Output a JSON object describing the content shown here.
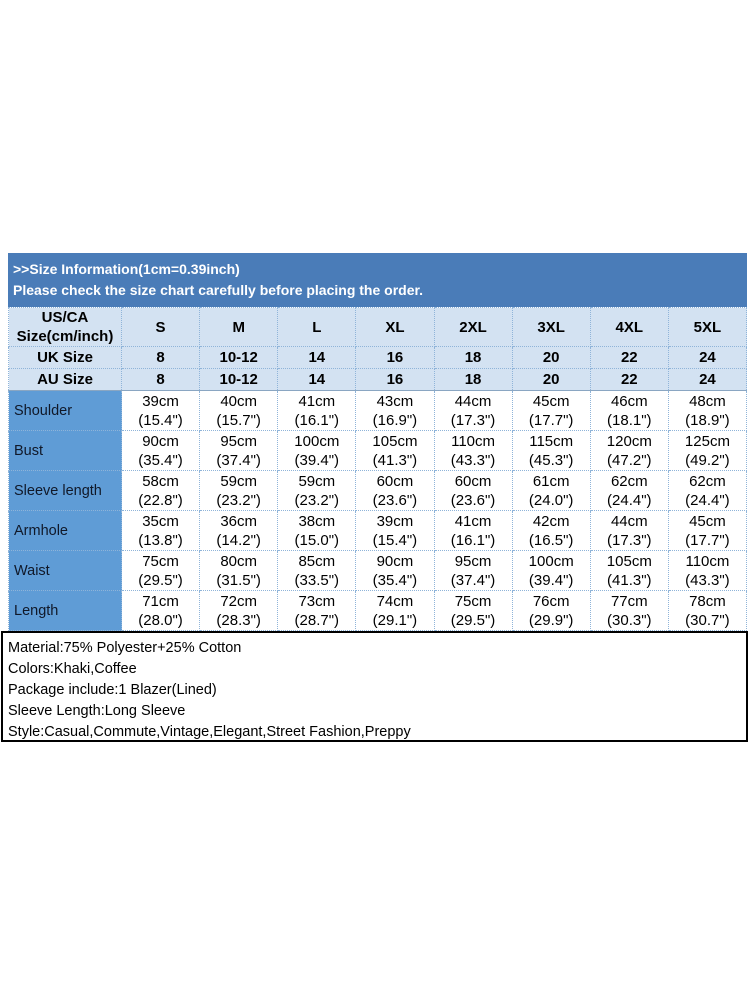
{
  "banner": {
    "line1": ">>Size Information(1cm=0.39inch)",
    "line2": "Please check the size chart carefully before placing the order."
  },
  "size_chart": {
    "corner_line1": "US/CA",
    "corner_line2": "Size(cm/inch)",
    "sizes": [
      "S",
      "M",
      "L",
      "XL",
      "2XL",
      "3XL",
      "4XL",
      "5XL"
    ],
    "uk": {
      "label": "UK Size",
      "values": [
        "8",
        "10-12",
        "14",
        "16",
        "18",
        "20",
        "22",
        "24"
      ]
    },
    "au": {
      "label": "AU Size",
      "values": [
        "8",
        "10-12",
        "14",
        "16",
        "18",
        "20",
        "22",
        "24"
      ]
    },
    "rows": [
      {
        "label": "Shoulder",
        "values": [
          {
            "cm": "39cm",
            "in": "(15.4\")"
          },
          {
            "cm": "40cm",
            "in": "(15.7\")"
          },
          {
            "cm": "41cm",
            "in": "(16.1\")"
          },
          {
            "cm": "43cm",
            "in": "(16.9\")"
          },
          {
            "cm": "44cm",
            "in": "(17.3\")"
          },
          {
            "cm": "45cm",
            "in": "(17.7\")"
          },
          {
            "cm": "46cm",
            "in": "(18.1\")"
          },
          {
            "cm": "48cm",
            "in": "(18.9\")"
          }
        ]
      },
      {
        "label": "Bust",
        "values": [
          {
            "cm": "90cm",
            "in": "(35.4\")"
          },
          {
            "cm": "95cm",
            "in": "(37.4\")"
          },
          {
            "cm": "100cm",
            "in": "(39.4\")"
          },
          {
            "cm": "105cm",
            "in": "(41.3\")"
          },
          {
            "cm": "110cm",
            "in": "(43.3\")"
          },
          {
            "cm": "115cm",
            "in": "(45.3\")"
          },
          {
            "cm": "120cm",
            "in": "(47.2\")"
          },
          {
            "cm": "125cm",
            "in": "(49.2\")"
          }
        ]
      },
      {
        "label": "Sleeve length",
        "values": [
          {
            "cm": "58cm",
            "in": "(22.8\")"
          },
          {
            "cm": "59cm",
            "in": "(23.2\")"
          },
          {
            "cm": "59cm",
            "in": "(23.2\")"
          },
          {
            "cm": "60cm",
            "in": "(23.6\")"
          },
          {
            "cm": "60cm",
            "in": "(23.6\")"
          },
          {
            "cm": "61cm",
            "in": "(24.0\")"
          },
          {
            "cm": "62cm",
            "in": "(24.4\")"
          },
          {
            "cm": "62cm",
            "in": "(24.4\")"
          }
        ]
      },
      {
        "label": "Armhole",
        "values": [
          {
            "cm": "35cm",
            "in": "(13.8\")"
          },
          {
            "cm": "36cm",
            "in": "(14.2\")"
          },
          {
            "cm": "38cm",
            "in": "(15.0\")"
          },
          {
            "cm": "39cm",
            "in": "(15.4\")"
          },
          {
            "cm": "41cm",
            "in": "(16.1\")"
          },
          {
            "cm": "42cm",
            "in": "(16.5\")"
          },
          {
            "cm": "44cm",
            "in": "(17.3\")"
          },
          {
            "cm": "45cm",
            "in": "(17.7\")"
          }
        ]
      },
      {
        "label": "Waist",
        "values": [
          {
            "cm": "75cm",
            "in": "(29.5\")"
          },
          {
            "cm": "80cm",
            "in": "(31.5\")"
          },
          {
            "cm": "85cm",
            "in": "(33.5\")"
          },
          {
            "cm": "90cm",
            "in": "(35.4\")"
          },
          {
            "cm": "95cm",
            "in": "(37.4\")"
          },
          {
            "cm": "100cm",
            "in": "(39.4\")"
          },
          {
            "cm": "105cm",
            "in": "(41.3\")"
          },
          {
            "cm": "110cm",
            "in": "(43.3\")"
          }
        ]
      },
      {
        "label": "Length",
        "values": [
          {
            "cm": "71cm",
            "in": "(28.0\")"
          },
          {
            "cm": "72cm",
            "in": "(28.3\")"
          },
          {
            "cm": "73cm",
            "in": "(28.7\")"
          },
          {
            "cm": "74cm",
            "in": "(29.1\")"
          },
          {
            "cm": "75cm",
            "in": "(29.5\")"
          },
          {
            "cm": "76cm",
            "in": "(29.9\")"
          },
          {
            "cm": "77cm",
            "in": "(30.3\")"
          },
          {
            "cm": "78cm",
            "in": "(30.7\")"
          }
        ]
      }
    ]
  },
  "product_info": {
    "material": "Material:75% Polyester+25% Cotton",
    "colors": "Colors:Khaki,Coffee",
    "package": "Package include:1 Blazer(Lined)",
    "sleeve": "Sleeve Length:Long Sleeve",
    "style": "Style:Casual,Commute,Vintage,Elegant,Street Fashion,Preppy"
  },
  "theme": {
    "banner_bg": "#4a7cb8",
    "header_row_bg": "#d3e2f2",
    "label_col_bg": "#5f9cd6",
    "grid_line": "#8fb4d9",
    "banner_text": "#ffffff",
    "body_text": "#000000",
    "info_border": "#000000"
  }
}
